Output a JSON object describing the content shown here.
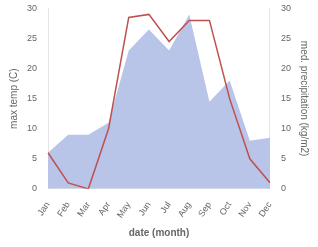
{
  "chart_data": {
    "type": "line",
    "xlabel": "date (month)",
    "ylabel": "max temp (C)",
    "y2label": "med. precipitation (kg/m2)",
    "categories": [
      "Jan",
      "Feb",
      "Mar",
      "Apr",
      "May",
      "Jun",
      "Jul",
      "Aug",
      "Sep",
      "Oct",
      "Nov",
      "Dec"
    ],
    "series": [
      {
        "type": "area",
        "color": "#b8c4e8",
        "axis": "y2",
        "values": [
          6,
          9,
          9,
          11,
          23,
          26.5,
          23,
          29,
          14.5,
          18,
          8,
          8.5
        ]
      },
      {
        "type": "line",
        "color": "#c0504d",
        "values": [
          6,
          1,
          0,
          10,
          28.5,
          29,
          24.5,
          28,
          28,
          15,
          5,
          1
        ]
      }
    ],
    "ylim": [
      0,
      30
    ],
    "yticks": [
      0,
      5,
      10,
      15,
      20,
      25,
      30
    ],
    "y2lim": [
      0,
      30
    ],
    "y2ticks": [
      0,
      5,
      10,
      15,
      20,
      25,
      30
    ],
    "grid": false
  }
}
